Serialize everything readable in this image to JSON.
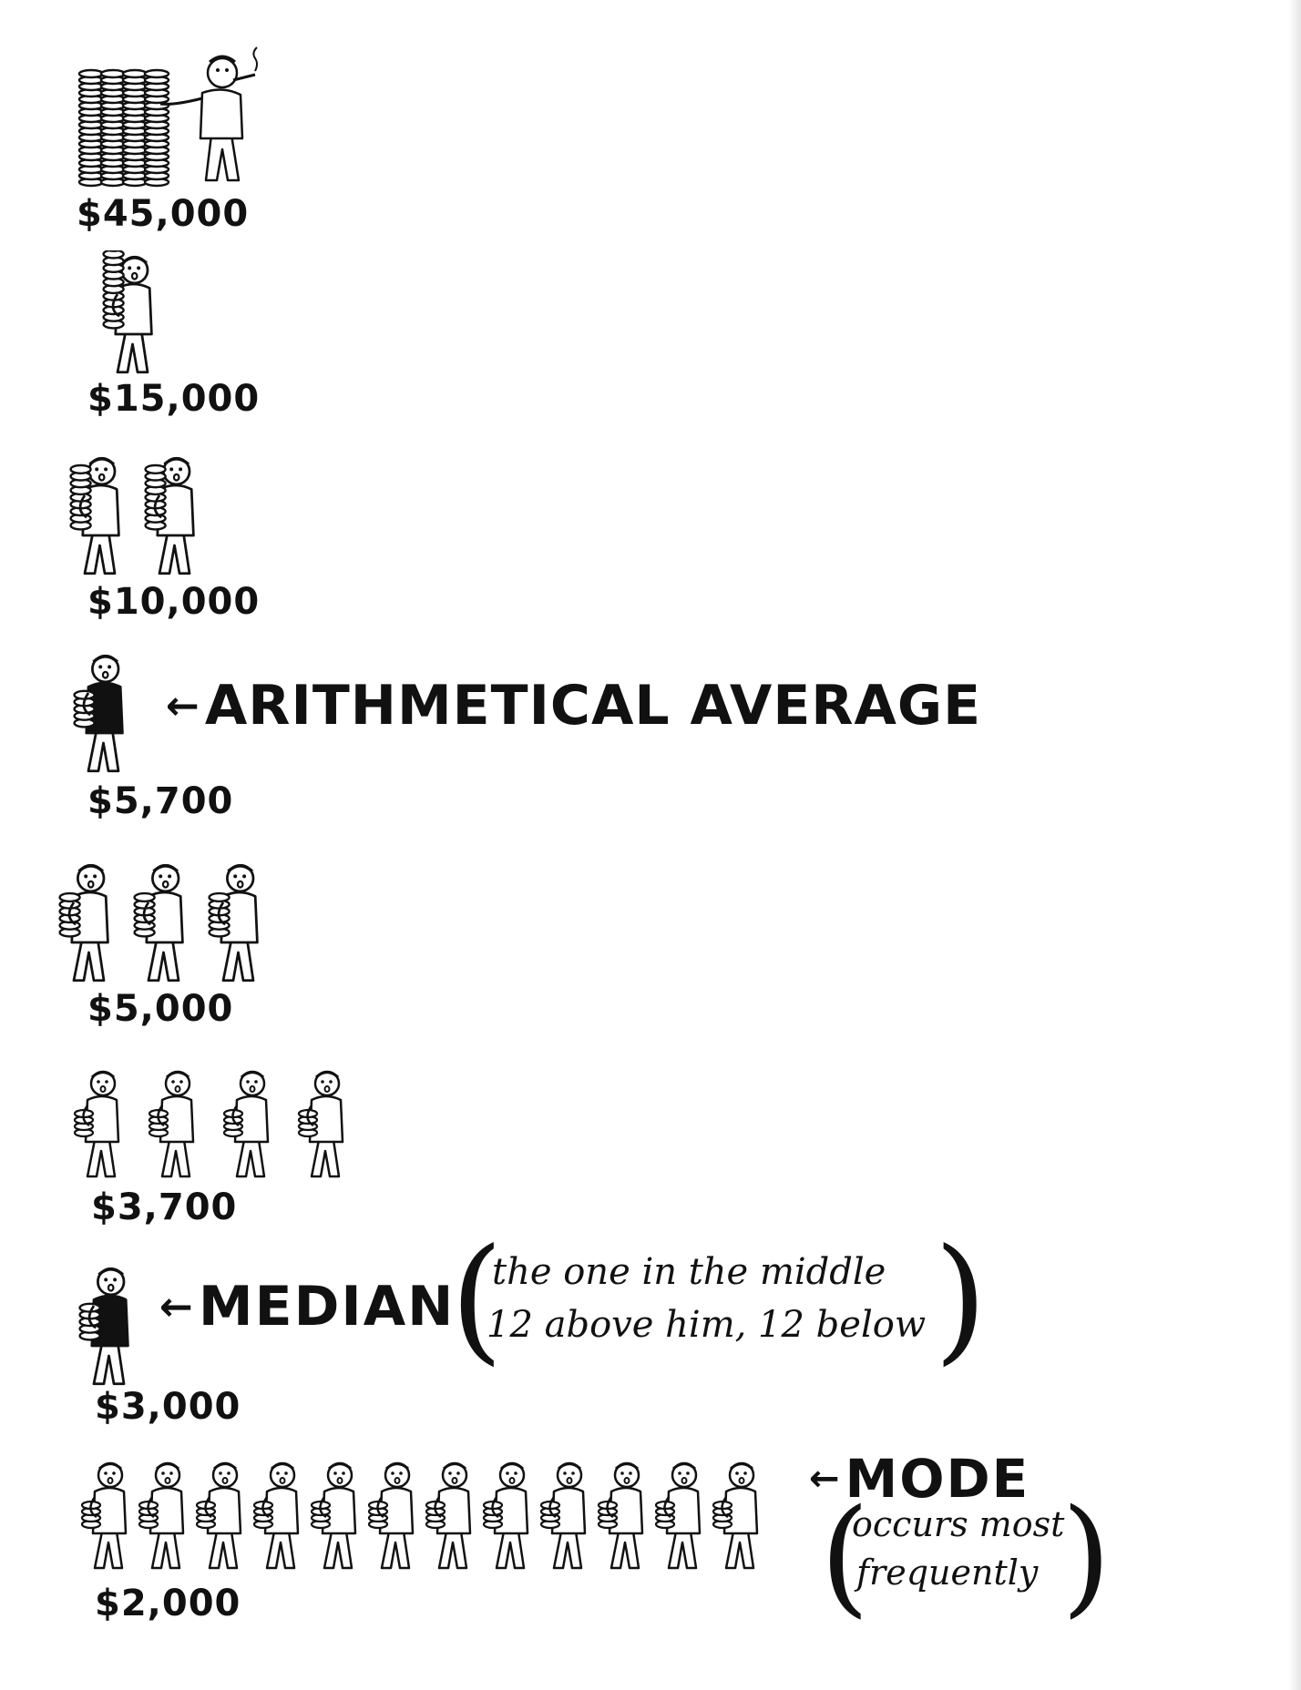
{
  "colors": {
    "ink": "#111111",
    "paper": "#ffffff"
  },
  "chart_data": {
    "type": "pictograph",
    "title": "",
    "unit": "person",
    "categories": [
      "$45,000",
      "$15,000",
      "$10,000",
      "$5,700",
      "$5,000",
      "$3,700",
      "$3,000",
      "$2,000"
    ],
    "values": [
      1,
      1,
      2,
      1,
      3,
      4,
      1,
      12
    ],
    "incomes": [
      45000,
      15000,
      10000,
      5700,
      5000,
      3700,
      3000,
      2000
    ],
    "annotations": {
      "arithmetical_average": {
        "arrow": "←",
        "label": "ARITHMETICAL AVERAGE",
        "income": "$5,700"
      },
      "median": {
        "arrow": "←",
        "label": "MEDIAN",
        "income": "$3,000",
        "note_line1": "the one in the middle",
        "note_line2": "12 above him, 12 below"
      },
      "mode": {
        "arrow": "←",
        "label": "MODE",
        "income": "$2,000",
        "note_line1": "occurs most",
        "note_line2": "frequently"
      }
    },
    "rows": [
      {
        "label": "$45,000",
        "count": 1,
        "variant": "tycoon"
      },
      {
        "label": "$15,000",
        "count": 1,
        "variant": "rich"
      },
      {
        "label": "$10,000",
        "count": 2,
        "variant": "well-off"
      },
      {
        "label": "$5,700",
        "count": 1,
        "variant": "suit"
      },
      {
        "label": "$5,000",
        "count": 3,
        "variant": "standard"
      },
      {
        "label": "$3,700",
        "count": 4,
        "variant": "small"
      },
      {
        "label": "$3,000",
        "count": 1,
        "variant": "suit"
      },
      {
        "label": "$2,000",
        "count": 12,
        "variant": "small"
      }
    ]
  }
}
